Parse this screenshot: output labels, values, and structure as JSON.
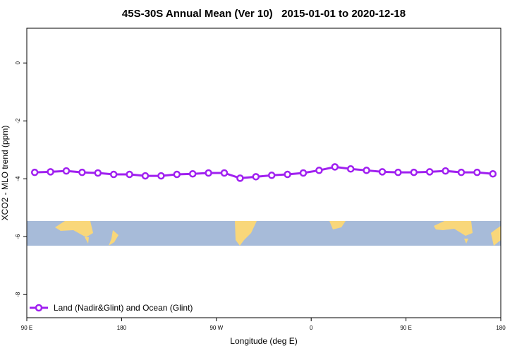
{
  "chart_data": {
    "type": "line",
    "title": "45S-30S Annual Mean (Ver 10)   2015-01-01 to 2020-12-18",
    "x_label": "Longitude (deg E)",
    "y_label": "XCO2 - MLO trend (ppm)",
    "x": [
      97.5,
      112.5,
      127.5,
      142.5,
      157.5,
      172.5,
      187.5,
      202.5,
      217.5,
      232.5,
      247.5,
      262.5,
      277.5,
      292.5,
      307.5,
      322.5,
      337.5,
      352.5,
      367.5,
      382.5,
      397.5,
      412.5,
      427.5,
      442.5,
      457.5,
      472.5,
      487.5,
      502.5,
      517.5,
      532.5
    ],
    "series": [
      {
        "name": "Land (Nadir&Glint) and Ocean (Glint)",
        "color": "#a020f0",
        "values": [
          -3.78,
          -3.76,
          -3.73,
          -3.78,
          -3.8,
          -3.85,
          -3.85,
          -3.9,
          -3.9,
          -3.85,
          -3.83,
          -3.8,
          -3.8,
          -3.98,
          -3.93,
          -3.88,
          -3.85,
          -3.8,
          -3.71,
          -3.59,
          -3.66,
          -3.71,
          -3.76,
          -3.78,
          -3.78,
          -3.76,
          -3.73,
          -3.78,
          -3.78,
          -3.83
        ]
      }
    ],
    "xlim": [
      90,
      540
    ],
    "xticks": [
      {
        "value": 90,
        "label": "90 E"
      },
      180,
      {
        "value": 270,
        "label": "90 W"
      },
      {
        "value": 360,
        "label": "0"
      },
      {
        "value": 450,
        "label": "90 E"
      },
      {
        "value": 540,
        "label": "180"
      }
    ],
    "ylim": [
      -8.8,
      1.2
    ],
    "yticks": [
      0,
      -2,
      -4,
      -6,
      -8
    ],
    "legend": "bottom-left"
  }
}
